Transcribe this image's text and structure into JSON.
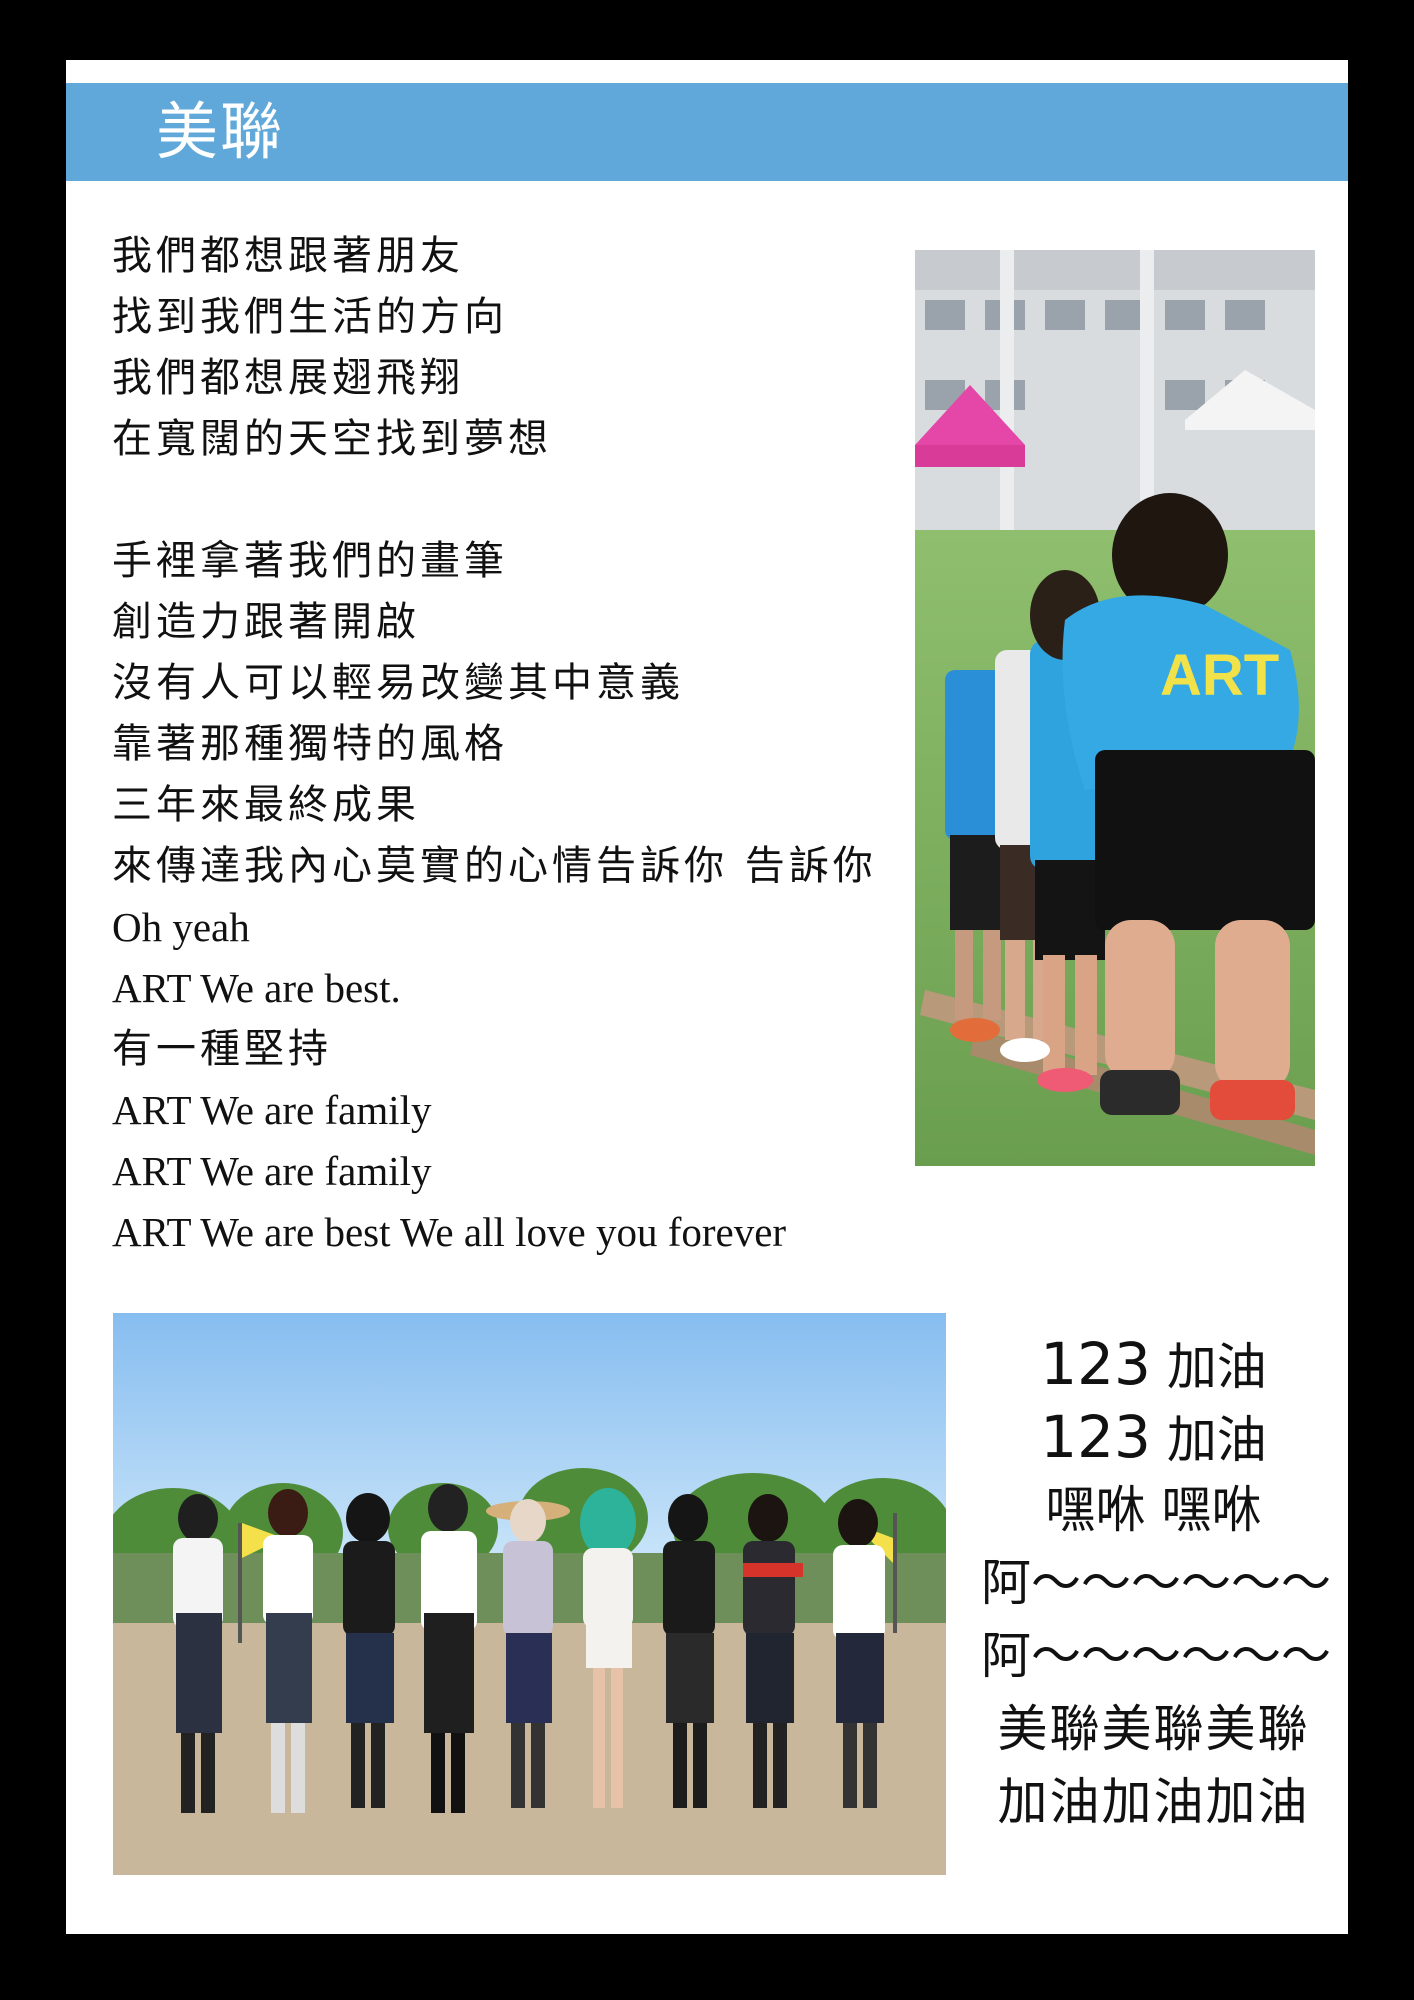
{
  "header": {
    "title": "美聯"
  },
  "lyrics": {
    "verse1": [
      "我們都想跟著朋友",
      "找到我們生活的方向",
      "我們都想展翅飛翔",
      "在寬闊的天空找到夢想"
    ],
    "verse2": [
      "手裡拿著我們的畫筆",
      "創造力跟著開啟",
      "沒有人可以輕易改變其中意義",
      "靠著那種獨特的風格",
      "三年來最終成果",
      "來傳達我內心莫實的心情告訴你 告訴你"
    ],
    "outro": [
      "Oh yeah",
      "ART We are best.",
      "有一種堅持",
      "ART We are family",
      "ART We are family",
      "ART We are best We all love you forever"
    ]
  },
  "photo1": {
    "shirt_logo": "ART"
  },
  "chant": {
    "line1_num": "123",
    "line1_text": "加油",
    "line2_num": "123",
    "line2_text": "加油",
    "line3": "嘿咻 嘿咻",
    "line4": "阿～～～～～～",
    "line5": "阿～～～～～～",
    "line6": "美聯美聯美聯",
    "line7": "加油加油加油"
  },
  "colors": {
    "header": "#5fa8d9",
    "background": "#000000",
    "page": "#ffffff"
  }
}
